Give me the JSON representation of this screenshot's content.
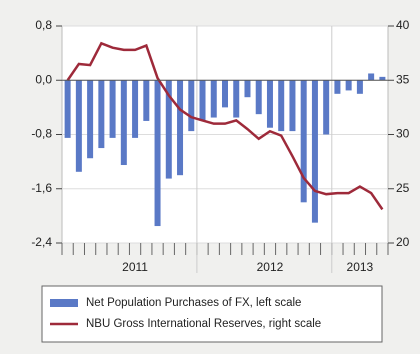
{
  "chart_data": {
    "type": "bar-line",
    "categories": [
      null,
      null,
      null,
      null,
      null,
      null,
      "2011",
      null,
      null,
      null,
      null,
      null,
      null,
      null,
      null,
      null,
      null,
      null,
      "2012",
      null,
      null,
      null,
      null,
      null,
      null,
      null,
      "2013",
      null,
      null
    ],
    "series": [
      {
        "name": "Net Population Purchases of FX, left scale",
        "type": "bar",
        "color": "#5a79c6",
        "values": [
          -0.85,
          -1.35,
          -1.15,
          -1.0,
          -0.85,
          -1.25,
          -0.85,
          -0.6,
          -2.15,
          -1.45,
          -1.4,
          -0.75,
          -0.6,
          -0.55,
          -0.4,
          -0.55,
          -0.25,
          -0.5,
          -0.7,
          -0.75,
          -0.75,
          -1.8,
          -2.1,
          -0.8,
          -0.2,
          -0.15,
          -0.2,
          0.1,
          0.05
        ]
      },
      {
        "name": "NBU Gross International Reserves, right scale",
        "type": "line",
        "axis": "y2",
        "color": "#9e2a3a",
        "values": [
          35.0,
          36.5,
          36.4,
          38.4,
          38.0,
          37.8,
          37.8,
          38.2,
          35.2,
          33.6,
          32.3,
          31.6,
          31.3,
          31.0,
          31.0,
          31.3,
          30.5,
          29.6,
          30.3,
          29.9,
          28.0,
          26.0,
          24.8,
          24.5,
          24.6,
          24.6,
          25.2,
          24.6,
          23.1
        ]
      }
    ],
    "ylim": [
      -2.4,
      0.8
    ],
    "yticks": [
      {
        "value": -2.4,
        "label": "-2,4"
      },
      {
        "value": -1.6,
        "label": "-1,6"
      },
      {
        "value": -0.8,
        "label": "-0,8"
      },
      {
        "value": 0,
        "label": "0,0"
      },
      {
        "value": 0.8,
        "label": "0,8"
      }
    ],
    "y2lim": [
      20,
      40
    ],
    "y2ticks": [
      20,
      25,
      30,
      35,
      40
    ],
    "grid": true
  }
}
